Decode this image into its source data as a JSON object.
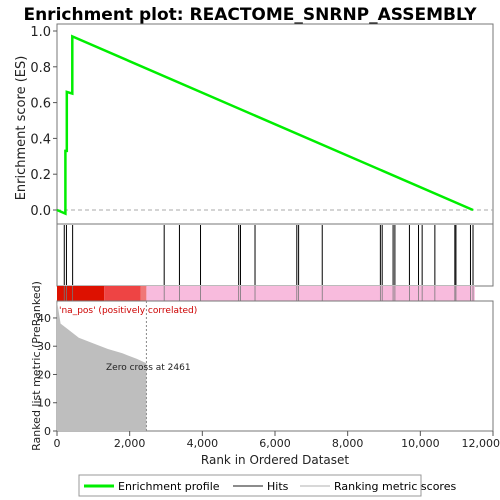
{
  "chart_data": {
    "type": "line",
    "title": "Enrichment plot: REACTOME_SNRNP_ASSEMBLY",
    "xlabel": "Rank in Ordered Dataset",
    "es_ylabel": "Enrichment score (ES)",
    "metric_ylabel": "Ranked list metric (PreRanked)",
    "x_ticks": [
      "0",
      "2,000",
      "4,000",
      "6,000",
      "8,000",
      "10,000",
      "12,000"
    ],
    "es_ticks": [
      "0.0",
      "0.2",
      "0.4",
      "0.6",
      "0.8",
      "1.0"
    ],
    "metric_ticks": [
      "0",
      "10",
      "20",
      "30",
      "40"
    ],
    "xlim": [
      0,
      12000
    ],
    "es_ylim": [
      -0.05,
      1.0
    ],
    "metric_ylim": [
      0,
      46
    ],
    "enrichment_profile": {
      "x": [
        0,
        230,
        230,
        270,
        270,
        420,
        420,
        11450
      ],
      "y": [
        0.0,
        -0.02,
        0.33,
        0.33,
        0.66,
        0.65,
        0.97,
        0.0
      ]
    },
    "hits": [
      200,
      260,
      430,
      2950,
      3370,
      3950,
      5000,
      5050,
      5450,
      6600,
      6650,
      7300,
      8900,
      8950,
      9250,
      9300,
      9700,
      9950,
      10050,
      10400,
      10950,
      10980,
      11380,
      11450
    ],
    "metric_curve": {
      "x": [
        0,
        100,
        300,
        600,
        1000,
        1400,
        1800,
        2200,
        2461
      ],
      "y": [
        46,
        38,
        36,
        33,
        31,
        29,
        27.5,
        25.5,
        24
      ]
    },
    "zero_cross_label": "Zero cross at 2461",
    "correlation_label": "'na_pos' (positively correlated)",
    "legend": [
      "Enrichment profile",
      "Hits",
      "Ranking metric scores"
    ],
    "colors": {
      "profile": "#00ee00",
      "hits": "#000000",
      "metric_fill": "#bebebe",
      "bar_red_dark": "#dd1100",
      "bar_red": "#ee4444",
      "bar_pink": "#f8bbdd",
      "correlation_text": "#cc0000"
    }
  }
}
